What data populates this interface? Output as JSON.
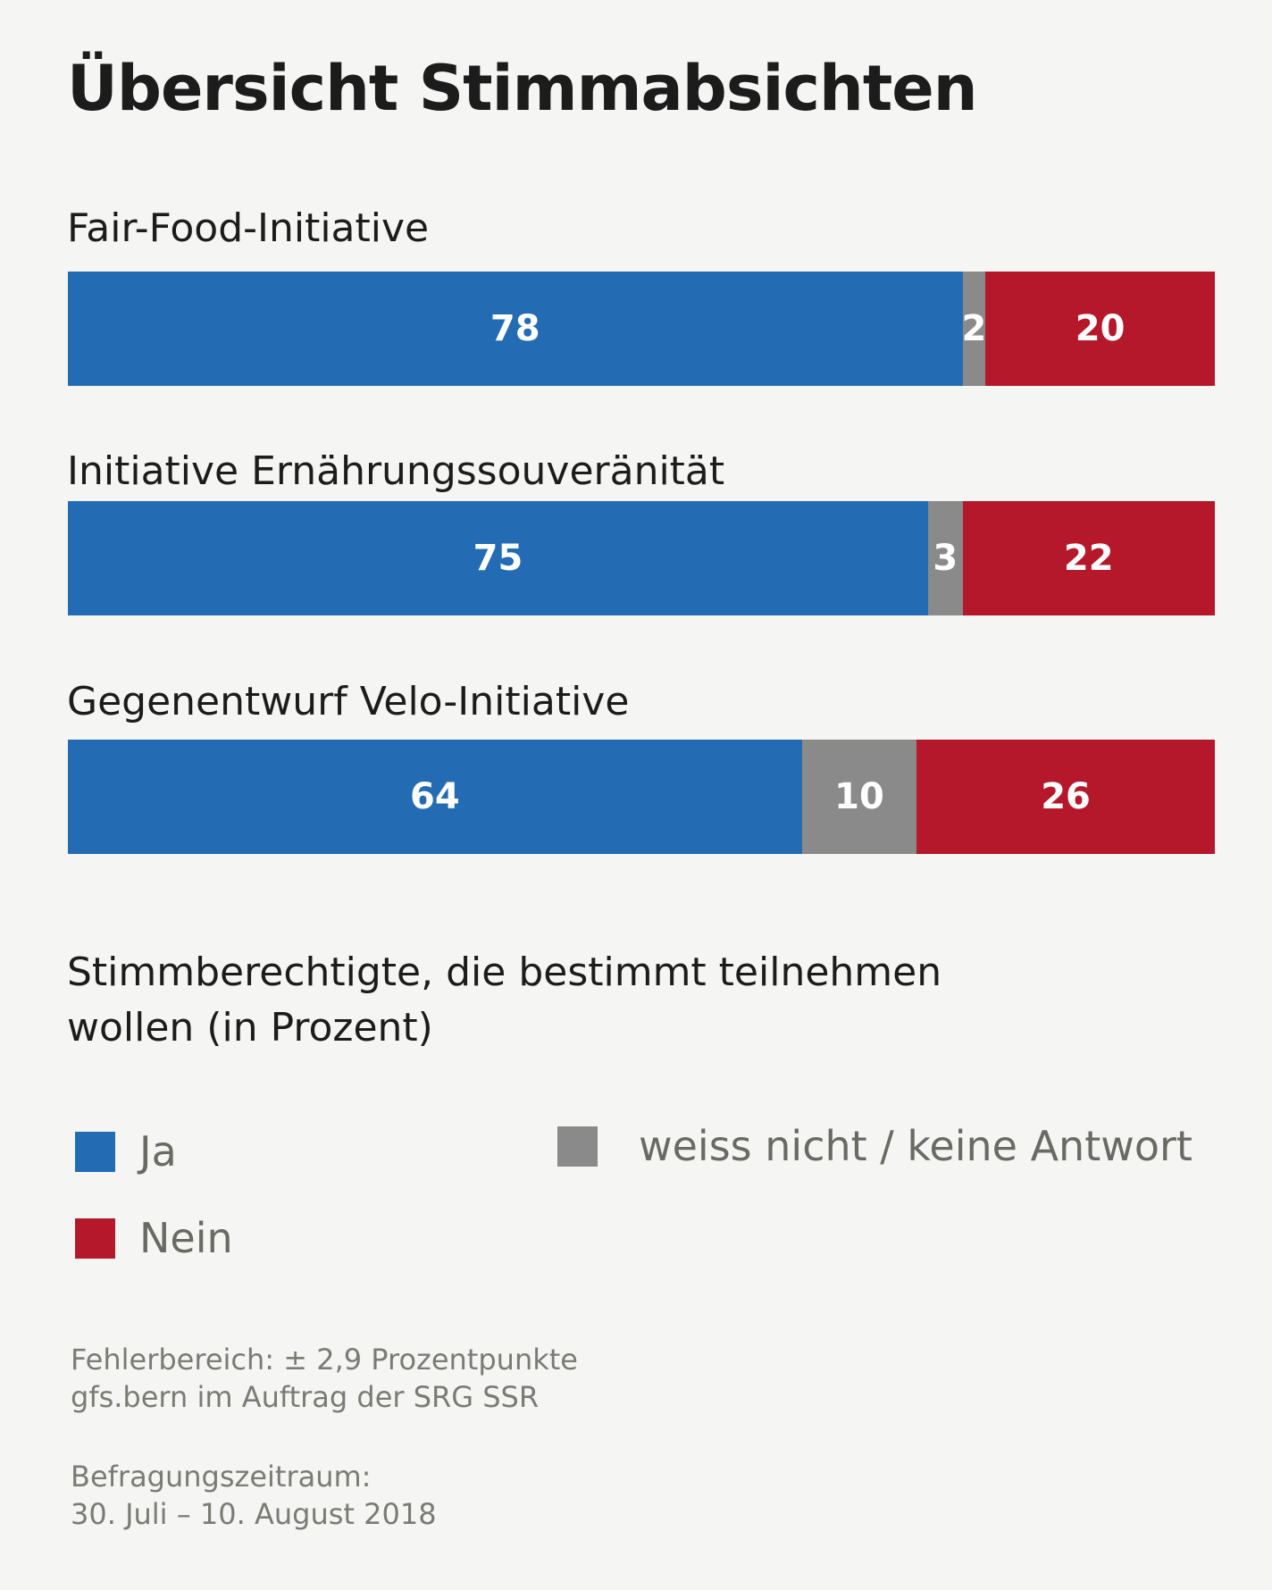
{
  "title": "Übersicht Stimmabsichten",
  "note": "Stimmberechtigte, die bestimmt teilnehmen wollen (in Prozent)",
  "colors": {
    "ja": "#236cb4",
    "weiss_nicht": "#8a8a8a",
    "nein": "#b5182b",
    "background": "#f5f5f3"
  },
  "legend": {
    "ja": "Ja",
    "nein": "Nein",
    "weiss_nicht": "weiss nicht / keine Antwort"
  },
  "footer": {
    "line1": "Fehlerbereich: ± 2,9 Prozentpunkte",
    "line2": "gfs.bern im Auftrag der SRG SSR",
    "line3": "Befragungszeitraum:",
    "line4": "30. Juli – 10. August 2018"
  },
  "chart_data": {
    "type": "bar",
    "stacked": true,
    "orientation": "horizontal",
    "unit": "%",
    "categories": [
      "Fair-Food-Initiative",
      "Initiative Ernährungssouveränität",
      "Gegenentwurf Velo-Initiative"
    ],
    "series": [
      {
        "name": "Ja",
        "values": [
          78,
          75,
          64
        ]
      },
      {
        "name": "weiss nicht / keine Antwort",
        "values": [
          2,
          3,
          10
        ]
      },
      {
        "name": "Nein",
        "values": [
          20,
          22,
          26
        ]
      }
    ]
  }
}
